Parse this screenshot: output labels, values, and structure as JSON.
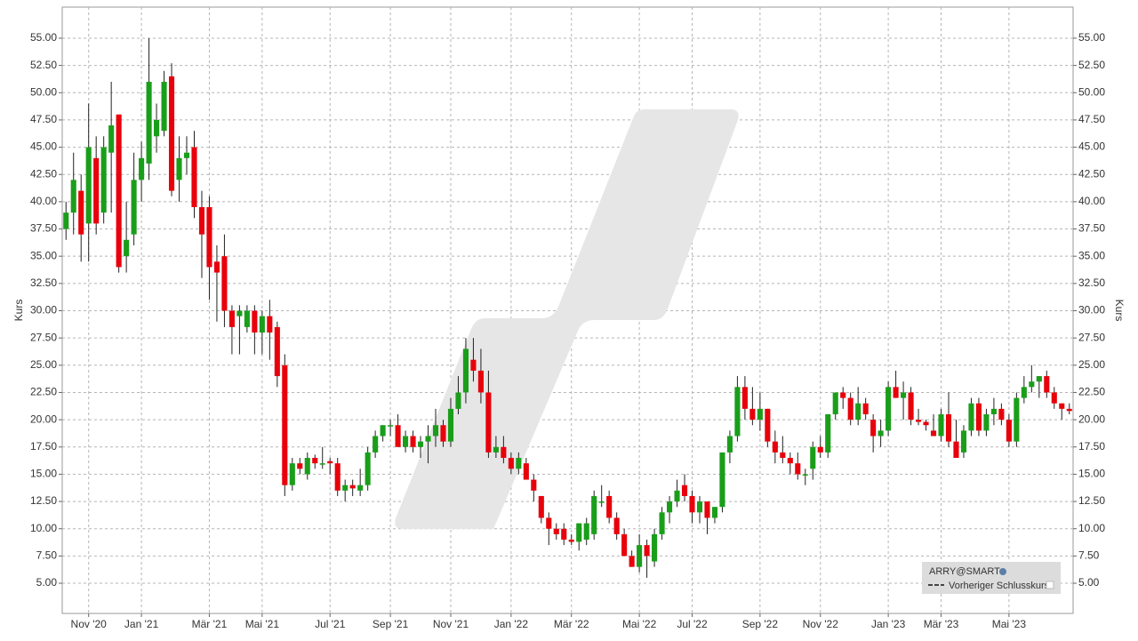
{
  "chart_data": {
    "type": "candlestick",
    "y_axis_label": "Kurs",
    "ylim": [
      2.23,
      57.85
    ],
    "yticks": [
      {
        "value": 5,
        "label": "5.00"
      },
      {
        "value": 7.5,
        "label": "7.50"
      },
      {
        "value": 10,
        "label": "10.00"
      },
      {
        "value": 12.5,
        "label": "12.50"
      },
      {
        "value": 15,
        "label": "15.00"
      },
      {
        "value": 17.5,
        "label": "17.50"
      },
      {
        "value": 20,
        "label": "20.00"
      },
      {
        "value": 22.5,
        "label": "22.50"
      },
      {
        "value": 25,
        "label": "25.00"
      },
      {
        "value": 27.5,
        "label": "27.50"
      },
      {
        "value": 30,
        "label": "30.00"
      },
      {
        "value": 32.5,
        "label": "32.50"
      },
      {
        "value": 35,
        "label": "35.00"
      },
      {
        "value": 37.5,
        "label": "37.50"
      },
      {
        "value": 40,
        "label": "40.00"
      },
      {
        "value": 42.5,
        "label": "42.50"
      },
      {
        "value": 45,
        "label": "45.00"
      },
      {
        "value": 47.5,
        "label": "47.50"
      },
      {
        "value": 50,
        "label": "50.00"
      },
      {
        "value": 52.5,
        "label": "52.50"
      },
      {
        "value": 55,
        "label": "55.00"
      }
    ],
    "grid": true,
    "up_color": "#1a9e1a",
    "down_color": "#e8000b",
    "previous_close": {
      "name": "Vorheriger Schlusskurs"
    },
    "categories": [
      null,
      null,
      null,
      "Nov '20",
      null,
      null,
      null,
      null,
      null,
      null,
      "Jan '21",
      null,
      null,
      null,
      null,
      null,
      null,
      null,
      null,
      "Mär '21",
      null,
      null,
      null,
      null,
      null,
      null,
      "Mai '21",
      null,
      null,
      null,
      null,
      null,
      null,
      null,
      null,
      "Jul '21",
      null,
      null,
      null,
      null,
      null,
      null,
      null,
      "Sep '21",
      null,
      null,
      null,
      null,
      null,
      null,
      null,
      "Nov '21",
      null,
      null,
      null,
      null,
      null,
      null,
      null,
      "Jan '22",
      null,
      null,
      null,
      null,
      null,
      null,
      null,
      "Mär '22",
      null,
      null,
      null,
      null,
      null,
      null,
      null,
      null,
      "Mai '22",
      null,
      null,
      null,
      null,
      null,
      null,
      "Jul '22",
      null,
      null,
      null,
      null,
      null,
      null,
      null,
      null,
      "Sep '22",
      null,
      null,
      null,
      null,
      null,
      null,
      null,
      "Nov '22",
      null,
      null,
      null,
      null,
      null,
      null,
      null,
      null,
      "Jan '23",
      null,
      null,
      null,
      null,
      null,
      null,
      "Mär '23",
      null,
      null,
      null,
      null,
      null,
      null,
      null,
      null,
      "Mai '23",
      null,
      null,
      null,
      null,
      null,
      null,
      null,
      null
    ],
    "series": {
      "name": "ARRY@SMART",
      "open": [
        37.5,
        39,
        41,
        38,
        44,
        39,
        44.5,
        48,
        35,
        37,
        42,
        43.5,
        46,
        46.5,
        51.5,
        42,
        44,
        45,
        39.5,
        39.5,
        34.5,
        35,
        30,
        29.5,
        28.5,
        30,
        28,
        29.5,
        28.5,
        25,
        14,
        16,
        15,
        16.5,
        16,
        16.2,
        16,
        13.5,
        14,
        13.5,
        14,
        17,
        18.5,
        19.5,
        19.5,
        17.5,
        18.5,
        17.5,
        18,
        18.5,
        19.5,
        18,
        21,
        22.5,
        25.5,
        24.5,
        22.5,
        17,
        17.5,
        16.5,
        15.5,
        16,
        14.5,
        13,
        11,
        10,
        10,
        9,
        8.8,
        9,
        9.5,
        12.5,
        13,
        11,
        9.5,
        7.5,
        6.5,
        8.5,
        7,
        9.5,
        11.5,
        12.5,
        14,
        13,
        11.5,
        12.5,
        11,
        12,
        17,
        18.5,
        23,
        21,
        20,
        21,
        18,
        17,
        16.5,
        16,
        15,
        15.5,
        17.5,
        17,
        20.5,
        22.5,
        22,
        20,
        21.5,
        20,
        18.5,
        19,
        23,
        22,
        22.5,
        20,
        19.8,
        19,
        18.5,
        20.5,
        18,
        17,
        19,
        21.5,
        19,
        20.5,
        21,
        20,
        18,
        22,
        23,
        23.5,
        24,
        22.5,
        21.5,
        21
      ],
      "high": [
        40,
        44.5,
        42.5,
        49,
        46,
        46,
        51,
        48,
        40,
        44.5,
        45.5,
        55,
        49,
        52,
        52.7,
        46,
        46,
        46.5,
        41,
        40.5,
        36,
        37,
        30.5,
        30.5,
        30.5,
        30.5,
        30,
        31,
        29,
        26,
        16.5,
        16.5,
        17,
        16.8,
        17.5,
        16.5,
        16.5,
        14.5,
        14.5,
        15.5,
        17.5,
        19,
        19.5,
        20,
        20.5,
        19,
        19,
        18.5,
        19.5,
        21,
        20,
        22,
        24,
        27.5,
        27.5,
        26.5,
        24.5,
        18.5,
        18.5,
        17,
        17,
        16.5,
        15,
        13,
        11.5,
        10.5,
        10.5,
        9.5,
        10.5,
        11,
        13.5,
        14,
        13.5,
        11.5,
        10,
        8,
        9.5,
        9,
        10,
        12,
        13,
        14.5,
        15,
        13.5,
        13,
        12.5,
        12,
        17,
        19,
        24,
        24,
        23,
        22.5,
        21,
        19,
        18.5,
        17,
        17,
        15.5,
        18,
        18.5,
        20.5,
        22.5,
        23,
        22.5,
        23,
        22,
        20.5,
        20,
        23.5,
        24.5,
        23.5,
        23,
        21,
        20,
        20.5,
        21,
        22.5,
        20,
        19.5,
        22,
        22,
        21,
        22,
        21.5,
        20.5,
        22.5,
        24,
        25,
        24,
        24.5,
        23,
        21.5,
        21.5
      ],
      "low": [
        36.5,
        37,
        34.5,
        34.5,
        37,
        38,
        39,
        33.5,
        33.5,
        36,
        40,
        42,
        44.5,
        46,
        40.5,
        40,
        42.5,
        38.5,
        33,
        31,
        29,
        28.5,
        26,
        26,
        28,
        26,
        26,
        25.5,
        23,
        13,
        13.5,
        15,
        14.5,
        15.5,
        15.5,
        15,
        13,
        12.5,
        13,
        13,
        13.5,
        16.5,
        18,
        18.5,
        17.5,
        17,
        17,
        16.5,
        16,
        17.5,
        17.5,
        17.5,
        20.5,
        21.5,
        23.5,
        21.5,
        16.5,
        16.5,
        16,
        15,
        15,
        14.5,
        12.5,
        10.5,
        8.5,
        9,
        8.5,
        8.5,
        8,
        8.5,
        9,
        12,
        10.5,
        9,
        7.5,
        6.5,
        6,
        5.5,
        6.5,
        9,
        10.5,
        12,
        12.5,
        10.5,
        10.5,
        9.5,
        10.5,
        11.5,
        16,
        18,
        20,
        19.5,
        19,
        17.5,
        16,
        16,
        15,
        14.5,
        14,
        14.5,
        16.5,
        16.5,
        20,
        21,
        19.5,
        19.5,
        20,
        17,
        17.5,
        18.5,
        22,
        20,
        19.5,
        19.5,
        19,
        18.5,
        18,
        17.5,
        16.5,
        16.5,
        18.5,
        18.5,
        18.5,
        19.5,
        19.5,
        17.5,
        17.5,
        21.5,
        22.5,
        22,
        22,
        21,
        20,
        20.5
      ],
      "close": [
        39,
        42,
        37,
        45,
        38,
        45,
        47,
        34,
        36.5,
        42,
        44,
        51,
        47.5,
        51,
        41,
        44,
        44.5,
        39.5,
        37,
        34,
        33.5,
        30,
        28.5,
        30,
        30,
        28,
        29.5,
        28,
        24,
        14,
        16,
        15.5,
        16.5,
        16,
        16,
        16,
        13.5,
        14,
        13.7,
        14,
        17,
        18.5,
        19.5,
        19.5,
        17.5,
        18.5,
        17.5,
        18,
        18.5,
        19.5,
        18,
        21,
        22.5,
        26.5,
        24.5,
        22.5,
        17,
        17.5,
        16.5,
        15.5,
        16.5,
        14.5,
        13.5,
        11,
        10,
        9.5,
        9,
        8.8,
        10.5,
        10.5,
        13,
        12.5,
        11,
        9.5,
        7.5,
        6.5,
        8.5,
        7.5,
        9.5,
        11.5,
        12.5,
        13.5,
        13,
        11.5,
        12.5,
        11,
        12,
        17,
        18.5,
        23,
        21,
        20,
        21,
        18,
        17,
        16.5,
        16,
        15,
        15,
        17.5,
        17,
        20.5,
        22.5,
        22,
        20,
        21.5,
        20.5,
        18.5,
        19,
        23,
        22,
        22.5,
        20,
        19.8,
        19.5,
        18.5,
        20.5,
        18,
        16.5,
        19,
        21.5,
        19,
        20.5,
        21,
        20,
        18,
        22,
        23,
        23.5,
        24,
        22.5,
        21.5,
        21,
        20.8
      ]
    }
  }
}
